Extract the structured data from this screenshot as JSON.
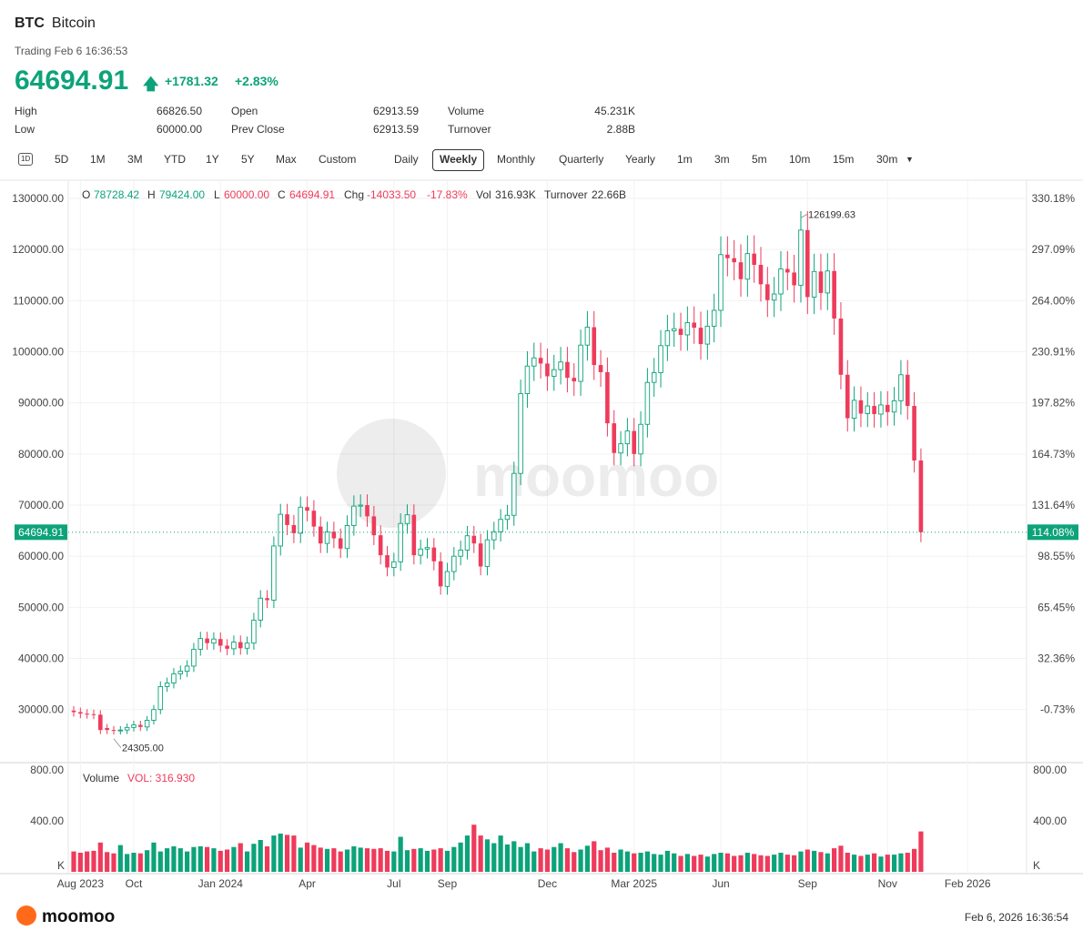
{
  "header": {
    "symbol": "BTC",
    "name": "Bitcoin",
    "trading_status": "Trading Feb 6 16:36:53",
    "price": "64694.91",
    "change": "+1781.32",
    "change_pct": "+2.83%"
  },
  "stats": {
    "high_label": "High",
    "high": "66826.50",
    "low_label": "Low",
    "low": "60000.00",
    "open_label": "Open",
    "open": "62913.59",
    "prev_close_label": "Prev Close",
    "prev_close": "62913.59",
    "volume_label": "Volume",
    "volume": "45.231K",
    "turnover_label": "Turnover",
    "turnover": "2.88B"
  },
  "tabs": {
    "intraday": "1D",
    "range": [
      "5D",
      "1M",
      "3M",
      "YTD",
      "1Y",
      "5Y",
      "Max",
      "Custom"
    ],
    "period": [
      "Daily",
      "Weekly",
      "Monthly",
      "Quarterly",
      "Yearly"
    ],
    "minutes": [
      "1m",
      "3m",
      "5m",
      "10m",
      "15m",
      "30m"
    ],
    "selected": "Weekly"
  },
  "ohlc_bar": {
    "o_label": "O",
    "o": "78728.42",
    "h_label": "H",
    "h": "79424.00",
    "l_label": "L",
    "l": "60000.00",
    "c_label": "C",
    "c": "64694.91",
    "chg_label": "Chg",
    "chg": "-14033.50",
    "chg_pct": "-17.83%",
    "vol_label": "Vol",
    "vol": "316.93K",
    "turnover_label": "Turnover",
    "turnover": "22.66B"
  },
  "volume_panel": {
    "title": "Volume",
    "vol_text": "VOL: 316.930",
    "unit": "K"
  },
  "watermark": "moomoo",
  "footer": {
    "logo": "moomoo",
    "date": "Feb 6, 2026 16:36:54"
  },
  "colors": {
    "up": "#0da37a",
    "down": "#ee3b5b"
  },
  "chart_data": {
    "type": "candlestick",
    "interval": "weekly",
    "y_ticks": [
      "130000.00",
      "120000.00",
      "110000.00",
      "100000.00",
      "90000.00",
      "80000.00",
      "70000.00",
      "60000.00",
      "50000.00",
      "40000.00",
      "30000.00"
    ],
    "y_ticks_values": [
      130000,
      120000,
      110000,
      100000,
      90000,
      80000,
      70000,
      60000,
      50000,
      40000,
      30000
    ],
    "pct_ticks": [
      "330.18%",
      "297.09%",
      "264.00%",
      "230.91%",
      "197.82%",
      "164.73%",
      "131.64%",
      "98.55%",
      "65.45%",
      "32.36%",
      "-0.73%"
    ],
    "x_ticks": [
      "Aug 2023",
      "Oct",
      "Jan 2024",
      "Apr",
      "Jul",
      "Sep",
      "Dec",
      "Mar 2025",
      "Jun",
      "Sep",
      "Nov",
      "Feb 2026"
    ],
    "x_tick_weeks": [
      1,
      9,
      22,
      35,
      48,
      56,
      71,
      84,
      97,
      110,
      122,
      134
    ],
    "current_price_label": "64694.91",
    "current_pct_label": "114.08%",
    "current_price": 64694.91,
    "high_annotation": "126199.63",
    "low_annotation": "24305.00",
    "vol_ticks": [
      "800.00",
      "400.00"
    ],
    "vol_ticks_values": [
      800,
      400
    ],
    "close": [
      29500,
      29200,
      29100,
      29000,
      26000,
      26000,
      25900,
      26000,
      26500,
      27000,
      26600,
      27900,
      30000,
      34500,
      35200,
      37000,
      37500,
      38500,
      41800,
      43900,
      43000,
      43800,
      42500,
      41900,
      43200,
      42000,
      43000,
      47500,
      51800,
      51400,
      62000,
      68200,
      66100,
      64500,
      69600,
      68900,
      65800,
      62500,
      64800,
      63500,
      61500,
      66000,
      69800,
      70000,
      67800,
      64100,
      60200,
      57800,
      58900,
      66400,
      68100,
      60200,
      61400,
      61700,
      59000,
      54100,
      57000,
      60000,
      61200,
      64000,
      62500,
      58000,
      63200,
      64800,
      67200,
      68000,
      76200,
      91800,
      97200,
      98800,
      97700,
      95200,
      96500,
      98000,
      94900,
      94200,
      101300,
      104800,
      97400,
      96000,
      86000,
      80200,
      82000,
      84500,
      80000,
      85800,
      94000,
      95900,
      101200,
      104100,
      104500,
      103300,
      105700,
      104700,
      101500,
      105000,
      108100,
      119000,
      118300,
      117500,
      114200,
      119200,
      117000,
      113200,
      110100,
      111300,
      116200,
      115500,
      113000,
      123800,
      110700,
      115700,
      111500,
      115800,
      106500,
      95500,
      87000,
      90500,
      87900,
      89400,
      87800,
      89600,
      88200,
      90400,
      95500,
      89400,
      78728,
      64695
    ],
    "volume": [
      160,
      150,
      160,
      165,
      230,
      155,
      145,
      210,
      140,
      150,
      145,
      170,
      230,
      160,
      185,
      200,
      185,
      160,
      195,
      200,
      195,
      185,
      165,
      175,
      195,
      225,
      160,
      220,
      250,
      200,
      285,
      300,
      290,
      285,
      190,
      230,
      210,
      190,
      180,
      185,
      160,
      175,
      200,
      190,
      185,
      180,
      185,
      165,
      160,
      275,
      170,
      180,
      185,
      165,
      175,
      185,
      165,
      195,
      230,
      285,
      370,
      285,
      255,
      225,
      285,
      215,
      240,
      195,
      225,
      160,
      185,
      175,
      195,
      225,
      185,
      155,
      175,
      205,
      240,
      170,
      190,
      150,
      175,
      160,
      145,
      150,
      160,
      140,
      135,
      165,
      145,
      125,
      140,
      125,
      135,
      120,
      140,
      150,
      145,
      125,
      130,
      150,
      140,
      130,
      125,
      135,
      150,
      135,
      130,
      160,
      175,
      165,
      155,
      145,
      185,
      205,
      150,
      135,
      125,
      135,
      145,
      120,
      135,
      135,
      145,
      150,
      180,
      316.93
    ],
    "bullish": [
      false,
      false,
      false,
      false,
      false,
      false,
      false,
      true,
      true,
      true,
      false,
      true,
      true,
      true,
      true,
      true,
      true,
      true,
      true,
      true,
      false,
      true,
      false,
      false,
      true,
      false,
      true,
      true,
      true,
      false,
      true,
      true,
      false,
      false,
      true,
      false,
      false,
      false,
      true,
      false,
      false,
      true,
      true,
      true,
      false,
      false,
      false,
      false,
      true,
      true,
      true,
      false,
      true,
      true,
      false,
      false,
      true,
      true,
      true,
      true,
      false,
      false,
      true,
      true,
      true,
      true,
      true,
      true,
      true,
      true,
      false,
      false,
      true,
      true,
      false,
      false,
      true,
      true,
      false,
      false,
      false,
      false,
      true,
      true,
      false,
      true,
      true,
      true,
      true,
      true,
      true,
      false,
      true,
      false,
      false,
      true,
      true,
      true,
      false,
      false,
      false,
      true,
      false,
      false,
      false,
      true,
      true,
      false,
      false,
      true,
      false,
      true,
      false,
      true,
      false,
      false,
      false,
      true,
      false,
      true,
      false,
      true,
      false,
      true,
      true,
      false,
      false,
      false
    ]
  }
}
